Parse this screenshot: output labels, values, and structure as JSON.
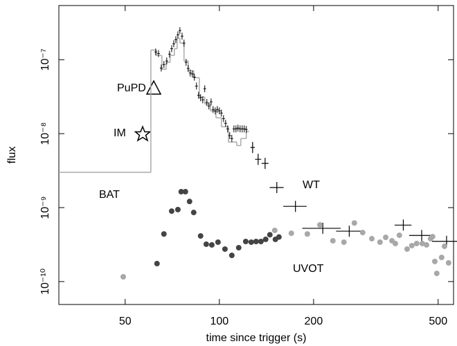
{
  "chart_data": {
    "type": "scatter",
    "log_x": true,
    "log_y": true,
    "x_label": "time since trigger (s)",
    "y_label": "flux",
    "xlim": [
      30.7,
      560
    ],
    "ylim": [
      4.9e-11,
      5.4e-07
    ],
    "xticks": [
      50,
      100,
      200,
      500
    ],
    "yticks": [
      {
        "value": 1e-10,
        "label": "10⁻¹⁰"
      },
      {
        "value": 1e-09,
        "label": "10⁻⁹"
      },
      {
        "value": 1e-08,
        "label": "10⁻⁸"
      },
      {
        "value": 1e-07,
        "label": "10⁻⁷"
      }
    ],
    "annotations": [
      "PuPD",
      "IM",
      "BAT",
      "WT",
      "UVOT"
    ],
    "model": {
      "color": "#aaaaaa",
      "bins": [
        30.7,
        60.4,
        62.9,
        65.5,
        67.6,
        69.6,
        71.8,
        73.3,
        74.8,
        77.1,
        79.5,
        82.8,
        86.3,
        89.8,
        93.6,
        97.5,
        101.5,
        106.9,
        113.6,
        117.1,
        121.9,
        124.5
      ],
      "values": [
        3e-09,
        1.35e-07,
        1.14e-07,
        7.4e-08,
        9.2e-08,
        1.14e-07,
        1.41e-07,
        1.95e-07,
        1.68e-07,
        9.6e-08,
        7.1e-08,
        5.7e-08,
        3.13e-08,
        2.52e-08,
        2.03e-08,
        1.64e-08,
        1.24e-08,
        7.7e-09,
        6.9e-09,
        8.6e-09,
        1.07e-08
      ]
    },
    "series": [
      {
        "color": "#000000",
        "marker": "plus",
        "x": [
          62.6,
          63.9,
          65.2,
          66.5,
          67.9,
          69.3,
          70.4,
          71.5,
          72.6,
          73.7,
          74.8,
          76.0,
          77.1,
          78.3,
          79.5,
          80.7,
          82.0,
          83.2,
          84.5,
          85.8,
          87.1,
          88.5,
          89.8,
          91.2,
          92.6,
          94.1,
          95.5,
          97.0,
          98.5,
          100,
          101.5,
          103.1,
          104.7,
          106.3,
          107.9,
          109.6,
          111.3,
          113.0,
          114.7,
          116.5,
          118.3,
          120.1,
          121.9
        ],
        "values": [
          1.27e-07,
          1.21e-07,
          7.7e-08,
          8.6e-08,
          9.6e-08,
          1.19e-07,
          1.41e-07,
          1.64e-07,
          1.87e-07,
          2.17e-07,
          2.47e-07,
          2.08e-07,
          1.68e-07,
          9.2e-08,
          7.6e-08,
          6.6e-08,
          6.4e-08,
          5.8e-08,
          4.4e-08,
          3.3e-08,
          3.06e-08,
          2.87e-08,
          4.05e-08,
          2.64e-08,
          2.37e-08,
          2.69e-08,
          2.12e-08,
          2.03e-08,
          2.12e-08,
          2.03e-08,
          1.9e-08,
          1.6e-08,
          1.38e-08,
          1.16e-08,
          9.4e-09,
          8.6e-09,
          1.16e-08,
          1.16e-08,
          1.19e-08,
          1.16e-08,
          1.16e-08,
          1.16e-08,
          1.14e-08
        ]
      },
      {
        "color": "#000000",
        "marker": "xcross",
        "x": [
          127.7,
          133,
          140,
          152.6,
          175,
          214,
          260,
          387,
          443,
          532
        ],
        "xerr": [
          2,
          3,
          3.5,
          7.8,
          15,
          30,
          24,
          24,
          39,
          54
        ],
        "values": [
          6.5e-09,
          4.5e-09,
          3.96e-09,
          1.87e-09,
          1.04e-09,
          5.25e-10,
          4.8e-10,
          5.8e-10,
          4.2e-10,
          3.5e-10
        ]
      },
      {
        "color": "#444444",
        "marker": "dot",
        "x": [
          63.2,
          66.5,
          70.4,
          73.7,
          75.5,
          77.9,
          80.3,
          82.8,
          87.1,
          90.8,
          94.6,
          99.0,
          104.2,
          109.6,
          115.3,
          121.4,
          126.4,
          131,
          135.8,
          140.6,
          145,
          151,
          155
        ],
        "values": [
          1.75e-10,
          4.4e-10,
          8.97e-10,
          9.4e-10,
          1.64e-09,
          1.64e-09,
          1.21e-09,
          8.6e-10,
          4.14e-10,
          3.2e-10,
          3.13e-10,
          3.41e-10,
          2.75e-10,
          2.26e-10,
          2.87e-10,
          3.48e-10,
          3.41e-10,
          3.48e-10,
          3.48e-10,
          3.72e-10,
          4.3e-10,
          3.72e-10,
          4e-10
        ]
      },
      {
        "color": "#a8a8a8",
        "marker": "dot",
        "x": [
          49.3,
          150.3,
          169.8,
          191,
          209.5,
          230.5,
          250,
          270,
          287,
          307,
          326,
          340,
          356,
          365,
          376,
          398,
          412,
          427,
          445,
          459,
          473,
          480,
          488,
          495,
          513,
          524,
          540
        ],
        "values": [
          1.16e-10,
          4.92e-10,
          4.5e-10,
          4.4e-10,
          5.83e-10,
          3.56e-10,
          3.41e-10,
          6.2e-10,
          4.6e-10,
          3.8e-10,
          3.41e-10,
          3.96e-10,
          3.56e-10,
          3.27e-10,
          4.23e-10,
          2.75e-10,
          3.06e-10,
          3.27e-10,
          3.27e-10,
          3.13e-10,
          3.8e-10,
          4.05e-10,
          1.87e-10,
          1.29e-10,
          2.12e-10,
          3e-10,
          1.79e-10
        ]
      }
    ]
  }
}
